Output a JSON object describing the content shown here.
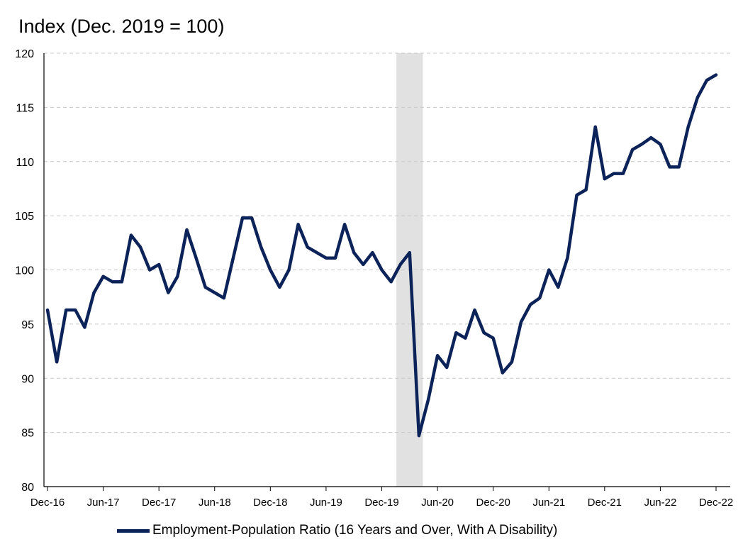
{
  "chart_data": {
    "type": "line",
    "title": "Index (Dec. 2019 = 100)",
    "ylim": [
      80,
      120
    ],
    "yticks": [
      80,
      85,
      90,
      95,
      100,
      105,
      110,
      115,
      120
    ],
    "x_tick_labels": [
      "Dec-16",
      "Jun-17",
      "Dec-17",
      "Jun-18",
      "Dec-18",
      "Jun-19",
      "Dec-19",
      "Jun-20",
      "Dec-20",
      "Jun-21",
      "Dec-21",
      "Jun-22",
      "Dec-22"
    ],
    "grid": true,
    "legend_placement": "bottom",
    "recession_shading": {
      "start": "Feb-20",
      "end": "Apr-20"
    },
    "colors": {
      "series": "#0c2359",
      "shading": "#e1e1e1",
      "grid": "#c8c8c8"
    },
    "x": [
      "Dec-16",
      "Jan-17",
      "Feb-17",
      "Mar-17",
      "Apr-17",
      "May-17",
      "Jun-17",
      "Jul-17",
      "Aug-17",
      "Sep-17",
      "Oct-17",
      "Nov-17",
      "Dec-17",
      "Jan-18",
      "Feb-18",
      "Mar-18",
      "Apr-18",
      "May-18",
      "Jun-18",
      "Jul-18",
      "Aug-18",
      "Sep-18",
      "Oct-18",
      "Nov-18",
      "Dec-18",
      "Jan-19",
      "Feb-19",
      "Mar-19",
      "Apr-19",
      "May-19",
      "Jun-19",
      "Jul-19",
      "Aug-19",
      "Sep-19",
      "Oct-19",
      "Nov-19",
      "Dec-19",
      "Jan-20",
      "Feb-20",
      "Mar-20",
      "Apr-20",
      "May-20",
      "Jun-20",
      "Jul-20",
      "Aug-20",
      "Sep-20",
      "Oct-20",
      "Nov-20",
      "Dec-20",
      "Jan-21",
      "Feb-21",
      "Mar-21",
      "Apr-21",
      "May-21",
      "Jun-21",
      "Jul-21",
      "Aug-21",
      "Sep-21",
      "Oct-21",
      "Nov-21",
      "Dec-21",
      "Jan-22",
      "Feb-22",
      "Mar-22",
      "Apr-22",
      "May-22",
      "Jun-22",
      "Jul-22",
      "Aug-22",
      "Sep-22",
      "Oct-22",
      "Nov-22",
      "Dec-22"
    ],
    "series": [
      {
        "name": "Employment-Population Ratio (16 Years and Over, With A Disability)",
        "values": [
          96.3,
          91.5,
          96.3,
          96.3,
          94.7,
          97.9,
          99.4,
          98.9,
          98.9,
          103.2,
          102.1,
          100.0,
          100.5,
          97.9,
          99.4,
          103.7,
          101.1,
          98.4,
          97.9,
          97.4,
          101.1,
          104.8,
          104.8,
          102.1,
          100.0,
          98.4,
          100.0,
          104.2,
          102.1,
          101.6,
          101.1,
          101.1,
          104.2,
          101.6,
          100.5,
          101.6,
          100.0,
          98.9,
          100.5,
          101.6,
          84.7,
          88.0,
          92.1,
          91.0,
          94.2,
          93.7,
          96.3,
          94.2,
          93.7,
          90.5,
          91.5,
          95.2,
          96.8,
          97.4,
          100.0,
          98.4,
          101.1,
          106.9,
          107.4,
          113.2,
          108.4,
          108.9,
          108.9,
          111.1,
          111.6,
          112.2,
          111.6,
          109.5,
          109.5,
          113.2,
          115.9,
          117.5,
          118.0
        ]
      }
    ]
  }
}
